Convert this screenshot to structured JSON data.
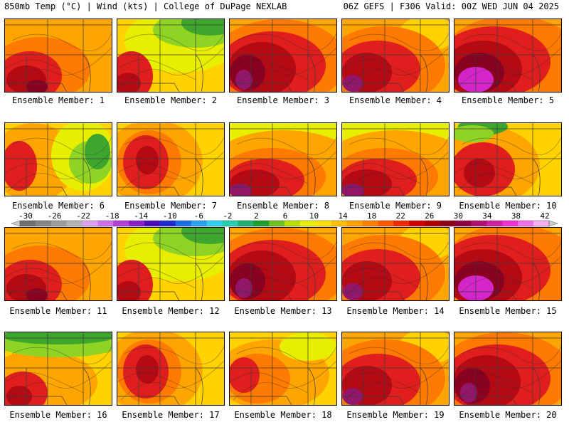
{
  "header": {
    "left": "850mb Temp (°C) | Wind (kts) | College of DuPage NEXLAB",
    "right": "06Z GEFS | F306 Valid: 00Z WED JUN 04 2025"
  },
  "member_label_prefix": "Ensemble Member: ",
  "members": [
    {
      "num": "1",
      "scheme": "hot-sw"
    },
    {
      "num": "2",
      "scheme": "cool-ne"
    },
    {
      "num": "3",
      "scheme": "very-hot"
    },
    {
      "num": "4",
      "scheme": "hot"
    },
    {
      "num": "5",
      "scheme": "extreme"
    },
    {
      "num": "6",
      "scheme": "warm-green-east"
    },
    {
      "num": "7",
      "scheme": "hot-w"
    },
    {
      "num": "8",
      "scheme": "hot-s"
    },
    {
      "num": "9",
      "scheme": "hot-s"
    },
    {
      "num": "10",
      "scheme": "warm-green-nw"
    },
    {
      "num": "11",
      "scheme": "hot-sw"
    },
    {
      "num": "12",
      "scheme": "cool-ne"
    },
    {
      "num": "13",
      "scheme": "very-hot"
    },
    {
      "num": "14",
      "scheme": "hot"
    },
    {
      "num": "15",
      "scheme": "extreme"
    },
    {
      "num": "16",
      "scheme": "warm-green-n"
    },
    {
      "num": "17",
      "scheme": "hot-w"
    },
    {
      "num": "18",
      "scheme": "warm"
    },
    {
      "num": "19",
      "scheme": "hot"
    },
    {
      "num": "20",
      "scheme": "very-hot"
    }
  ],
  "colorbar": {
    "labels": [
      "-30",
      "-26",
      "-22",
      "-18",
      "-14",
      "-10",
      "-6",
      "-2",
      "2",
      "6",
      "10",
      "14",
      "18",
      "22",
      "26",
      "30",
      "34",
      "38",
      "42"
    ],
    "colors": [
      "#6e6e6e",
      "#858585",
      "#9c9c9c",
      "#b3b3b3",
      "#e0a0f0",
      "#d070e8",
      "#b040d8",
      "#8a20c8",
      "#4b0fb8",
      "#1f2ad0",
      "#1c6ee6",
      "#2aa0f0",
      "#30d0f0",
      "#20d0b0",
      "#20b070",
      "#1e9e2c",
      "#70c020",
      "#b6e000",
      "#e8f000",
      "#ffe000",
      "#ffc000",
      "#ffa000",
      "#ff8000",
      "#ff5a00",
      "#ef2a00",
      "#d40000",
      "#b00000",
      "#8c0018",
      "#900040",
      "#b01070",
      "#d020a0",
      "#f030d0",
      "#f070e8",
      "#f8b0f4"
    ]
  },
  "map_colors": {
    "green": "#3fa62d",
    "lightgreen": "#8fd424",
    "yellow": "#e8ee00",
    "gold": "#ffd200",
    "orange": "#ffa500",
    "darkorange": "#ff7a00",
    "red": "#e01e1e",
    "crimson": "#b40a14",
    "maroon": "#8a0020",
    "purple": "#92176a",
    "magenta": "#d426c8"
  }
}
